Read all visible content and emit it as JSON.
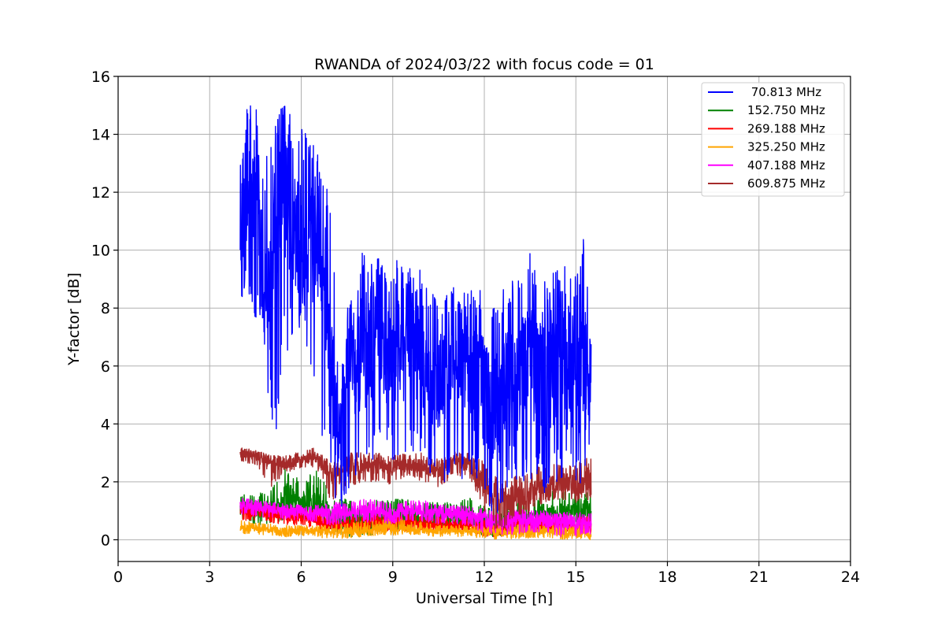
{
  "chart_data": {
    "type": "line",
    "title": "RWANDA of 2024/03/22 with focus code = 01",
    "xlabel": "Universal Time [h]",
    "ylabel": "Y-factor [dB]",
    "xlim": [
      0,
      24
    ],
    "ylim": [
      -0.75,
      16
    ],
    "xticks": [
      0,
      3,
      6,
      9,
      12,
      15,
      18,
      21,
      24
    ],
    "yticks": [
      0,
      2,
      4,
      6,
      8,
      10,
      12,
      14,
      16
    ],
    "grid": true,
    "legend_position": "top-right",
    "series": [
      {
        "name": " 70.813 MHz",
        "color": "#0000ff",
        "x": [
          4.0,
          4.25,
          4.5,
          4.75,
          5.0,
          5.25,
          5.5,
          5.75,
          6.0,
          6.25,
          6.5,
          6.75,
          7.0,
          7.25,
          7.5,
          7.75,
          8.0,
          8.25,
          8.5,
          8.75,
          9.0,
          9.25,
          9.5,
          9.75,
          10.0,
          10.25,
          10.5,
          10.75,
          11.0,
          11.25,
          11.5,
          11.75,
          12.0,
          12.25,
          12.5,
          12.75,
          13.0,
          13.25,
          13.5,
          13.75,
          14.0,
          14.25,
          14.5,
          14.75,
          15.0,
          15.25,
          15.5
        ],
        "y": [
          10.0,
          11.0,
          12.5,
          10.0,
          9.0,
          11.5,
          12.5,
          11.0,
          10.0,
          9.5,
          10.5,
          9.0,
          5.5,
          3.0,
          5.5,
          6.0,
          6.5,
          6.5,
          7.0,
          7.0,
          6.5,
          7.0,
          7.0,
          7.0,
          6.5,
          5.0,
          5.5,
          5.5,
          6.5,
          6.0,
          6.0,
          5.5,
          5.0,
          4.5,
          4.5,
          5.5,
          5.0,
          6.0,
          6.0,
          6.0,
          5.5,
          6.0,
          6.0,
          6.0,
          5.5,
          6.0,
          5.0
        ],
        "ymin": [
          8.2,
          8.0,
          7.5,
          7.0,
          4.0,
          3.5,
          6.5,
          6.5,
          7.0,
          5.5,
          5.0,
          3.0,
          2.0,
          0.7,
          1.5,
          2.0,
          2.5,
          2.5,
          3.0,
          3.0,
          2.5,
          3.0,
          3.0,
          3.0,
          2.5,
          2.0,
          2.0,
          2.0,
          2.5,
          2.0,
          2.0,
          2.0,
          1.5,
          0.8,
          1.0,
          1.5,
          1.5,
          2.0,
          2.0,
          2.0,
          1.5,
          2.0,
          2.0,
          2.0,
          1.5,
          2.0,
          1.5
        ],
        "ymax": [
          13.8,
          15.3,
          15.0,
          14.5,
          14.0,
          14.8,
          15.0,
          14.5,
          14.3,
          14.0,
          13.5,
          12.2,
          12.0,
          4.5,
          8.5,
          9.0,
          10.0,
          9.5,
          9.8,
          9.5,
          9.5,
          9.8,
          9.5,
          9.3,
          9.5,
          8.5,
          8.5,
          8.5,
          8.8,
          8.5,
          8.8,
          8.5,
          9.0,
          8.0,
          8.5,
          9.0,
          9.5,
          9.0,
          10.0,
          9.5,
          9.0,
          9.5,
          9.5,
          9.5,
          9.5,
          10.5,
          8.5
        ]
      },
      {
        "name": "152.750 MHz",
        "color": "#008000",
        "x": [
          4.0,
          4.5,
          5.0,
          5.5,
          6.0,
          6.5,
          7.0,
          7.5,
          8.0,
          8.5,
          9.0,
          9.5,
          10.0,
          10.5,
          11.0,
          11.5,
          12.0,
          12.5,
          13.0,
          13.5,
          14.0,
          14.5,
          15.0,
          15.5
        ],
        "y": [
          1.1,
          1.1,
          1.0,
          1.5,
          1.2,
          1.3,
          0.8,
          0.7,
          0.6,
          0.7,
          0.8,
          0.8,
          0.7,
          0.8,
          0.8,
          0.8,
          0.5,
          0.5,
          0.7,
          0.7,
          0.9,
          1.0,
          1.0,
          1.0
        ],
        "ymin": [
          0.7,
          0.5,
          0.5,
          0.7,
          0.7,
          0.7,
          0.3,
          0.1,
          0.1,
          0.2,
          0.3,
          0.3,
          0.3,
          0.4,
          0.4,
          0.4,
          0.1,
          0.1,
          0.3,
          0.3,
          0.5,
          0.6,
          0.6,
          0.5
        ],
        "ymax": [
          1.6,
          1.6,
          1.7,
          2.5,
          2.0,
          2.5,
          1.5,
          1.4,
          1.2,
          1.4,
          1.4,
          1.4,
          1.3,
          1.3,
          1.3,
          1.5,
          1.2,
          1.2,
          1.4,
          1.4,
          1.6,
          1.8,
          1.8,
          1.8
        ]
      },
      {
        "name": "269.188 MHz",
        "color": "#ff0000",
        "x": [
          4.0,
          4.5,
          5.0,
          5.5,
          6.0,
          6.5,
          7.0,
          7.5,
          8.0,
          8.5,
          9.0,
          9.5,
          10.0,
          10.5,
          11.0,
          11.5,
          12.0,
          12.5,
          13.0,
          13.5,
          14.0,
          14.5,
          15.0,
          15.5
        ],
        "y": [
          1.0,
          1.0,
          0.9,
          0.8,
          0.8,
          0.7,
          0.5,
          0.5,
          0.5,
          0.6,
          0.6,
          0.6,
          0.5,
          0.5,
          0.5,
          0.5,
          0.4,
          0.4,
          0.5,
          0.5,
          0.5,
          0.5,
          0.5,
          0.5
        ],
        "ymin": [
          0.7,
          0.6,
          0.6,
          0.5,
          0.5,
          0.4,
          0.2,
          0.2,
          0.3,
          0.3,
          0.3,
          0.3,
          0.3,
          0.3,
          0.3,
          0.3,
          0.1,
          0.1,
          0.2,
          0.2,
          0.3,
          0.3,
          0.2,
          0.2
        ],
        "ymax": [
          1.3,
          1.3,
          1.2,
          1.1,
          1.1,
          1.0,
          0.8,
          0.8,
          0.8,
          0.9,
          0.9,
          0.9,
          0.8,
          0.8,
          0.8,
          0.8,
          0.7,
          0.7,
          0.8,
          0.8,
          0.8,
          0.8,
          0.8,
          0.8
        ]
      },
      {
        "name": "325.250 MHz",
        "color": "#ffa500",
        "x": [
          4.0,
          4.5,
          5.0,
          5.5,
          6.0,
          6.5,
          7.0,
          7.5,
          8.0,
          8.5,
          9.0,
          9.5,
          10.0,
          10.5,
          11.0,
          11.5,
          12.0,
          12.5,
          13.0,
          13.5,
          14.0,
          14.5,
          15.0,
          15.5
        ],
        "y": [
          0.4,
          0.4,
          0.35,
          0.3,
          0.3,
          0.3,
          0.25,
          0.3,
          0.35,
          0.4,
          0.4,
          0.4,
          0.35,
          0.3,
          0.3,
          0.3,
          0.3,
          0.25,
          0.3,
          0.3,
          0.3,
          0.25,
          0.25,
          0.2
        ],
        "ymin": [
          0.2,
          0.2,
          0.15,
          0.1,
          0.15,
          0.1,
          0.0,
          0.05,
          0.1,
          0.15,
          0.15,
          0.15,
          0.15,
          0.1,
          0.1,
          0.1,
          0.05,
          0.0,
          0.05,
          0.05,
          0.05,
          0.0,
          0.05,
          0.0
        ],
        "ymax": [
          0.7,
          0.6,
          0.55,
          0.5,
          0.5,
          0.5,
          0.5,
          0.6,
          0.65,
          0.7,
          0.75,
          0.7,
          0.6,
          0.5,
          0.5,
          0.5,
          0.5,
          0.5,
          0.55,
          0.5,
          0.5,
          0.5,
          0.5,
          0.45
        ]
      },
      {
        "name": "407.188 MHz",
        "color": "#ff00ff",
        "x": [
          4.0,
          4.5,
          5.0,
          5.5,
          6.0,
          6.5,
          7.0,
          7.5,
          8.0,
          8.5,
          9.0,
          9.5,
          10.0,
          10.5,
          11.0,
          11.5,
          12.0,
          12.5,
          13.0,
          13.5,
          14.0,
          14.5,
          15.0,
          15.5
        ],
        "y": [
          1.2,
          1.15,
          1.05,
          1.0,
          0.95,
          0.95,
          0.9,
          0.95,
          1.0,
          1.0,
          0.9,
          1.0,
          1.0,
          0.9,
          0.9,
          0.85,
          0.7,
          0.6,
          0.7,
          0.7,
          0.65,
          0.6,
          0.6,
          0.6
        ],
        "ymin": [
          0.9,
          0.8,
          0.75,
          0.7,
          0.65,
          0.6,
          0.5,
          0.6,
          0.6,
          0.6,
          0.55,
          0.6,
          0.6,
          0.55,
          0.55,
          0.5,
          0.2,
          0.1,
          0.2,
          0.25,
          0.2,
          0.1,
          0.1,
          0.2
        ],
        "ymax": [
          1.45,
          1.4,
          1.3,
          1.25,
          1.2,
          1.2,
          1.3,
          1.35,
          1.4,
          1.4,
          1.25,
          1.35,
          1.4,
          1.2,
          1.2,
          1.15,
          1.1,
          1.0,
          1.05,
          1.05,
          1.0,
          0.95,
          0.95,
          0.95
        ]
      },
      {
        "name": "609.875 MHz",
        "color": "#a52a2a",
        "x": [
          4.0,
          4.5,
          5.0,
          5.5,
          6.0,
          6.5,
          7.0,
          7.5,
          8.0,
          8.5,
          9.0,
          9.5,
          10.0,
          10.5,
          11.0,
          11.5,
          12.0,
          12.5,
          13.0,
          13.5,
          14.0,
          14.5,
          15.0,
          15.5
        ],
        "y": [
          3.0,
          2.9,
          2.7,
          2.6,
          2.75,
          2.85,
          2.2,
          2.5,
          2.6,
          2.6,
          2.5,
          2.6,
          2.5,
          2.4,
          2.7,
          2.6,
          1.8,
          1.3,
          1.5,
          1.6,
          1.9,
          2.0,
          1.9,
          2.1
        ],
        "ymin": [
          2.7,
          2.6,
          1.8,
          2.3,
          2.5,
          2.5,
          1.2,
          1.8,
          2.0,
          2.0,
          1.9,
          2.2,
          2.0,
          1.8,
          2.2,
          2.2,
          1.0,
          0.2,
          0.8,
          0.9,
          1.3,
          1.4,
          1.2,
          1.4
        ],
        "ymax": [
          3.2,
          3.1,
          2.9,
          2.9,
          3.1,
          3.2,
          2.6,
          3.0,
          3.0,
          3.0,
          2.9,
          3.0,
          3.0,
          2.8,
          3.1,
          3.0,
          2.7,
          2.1,
          2.2,
          2.5,
          2.6,
          2.6,
          2.6,
          2.9
        ]
      }
    ]
  }
}
